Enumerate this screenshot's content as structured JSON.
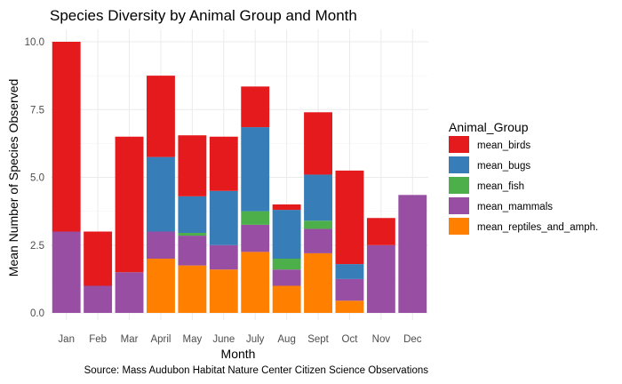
{
  "chart_data": {
    "type": "bar",
    "stacked": true,
    "title": "Species Diversity by Animal Group and Month",
    "xlabel": "Month",
    "ylabel": "Mean Number of Species Observed",
    "caption": "Source: Mass Audubon Habitat Nature Center Citizen Science Observations",
    "legend_title": "Animal_Group",
    "legend_position": "right",
    "grid": true,
    "ylim": [
      0,
      10.6
    ],
    "yticks": [
      0,
      2.5,
      5,
      7.5,
      10
    ],
    "ytick_labels": [
      "0.0",
      "2.5",
      "5.0",
      "7.5",
      "10.0"
    ],
    "categories": [
      "Jan",
      "Feb",
      "Mar",
      "April",
      "May",
      "June",
      "July",
      "Aug",
      "Sept",
      "Oct",
      "Nov",
      "Dec"
    ],
    "series": [
      {
        "name": "mean_birds",
        "color": "#E41A1C",
        "values": [
          7.0,
          2.0,
          5.0,
          3.0,
          2.25,
          2.0,
          1.5,
          0.2,
          2.3,
          3.45,
          1.0,
          0
        ]
      },
      {
        "name": "mean_bugs",
        "color": "#377EB8",
        "values": [
          0,
          0,
          0,
          2.75,
          1.35,
          2.0,
          3.1,
          1.8,
          1.7,
          0.55,
          0,
          0
        ]
      },
      {
        "name": "mean_fish",
        "color": "#4DAF4A",
        "values": [
          0,
          0,
          0,
          0,
          0.1,
          0,
          0.5,
          0.4,
          0.3,
          0,
          0,
          0
        ]
      },
      {
        "name": "mean_mammals",
        "color": "#984EA3",
        "values": [
          3.0,
          1.0,
          1.5,
          1.0,
          1.1,
          0.9,
          1.0,
          0.6,
          0.9,
          0.8,
          2.5,
          4.35
        ]
      },
      {
        "name": "mean_reptiles_and_amph.",
        "color": "#FF7F00",
        "values": [
          0,
          0,
          0,
          2.0,
          1.75,
          1.6,
          2.25,
          1.0,
          2.2,
          0.45,
          0,
          0
        ]
      }
    ]
  }
}
